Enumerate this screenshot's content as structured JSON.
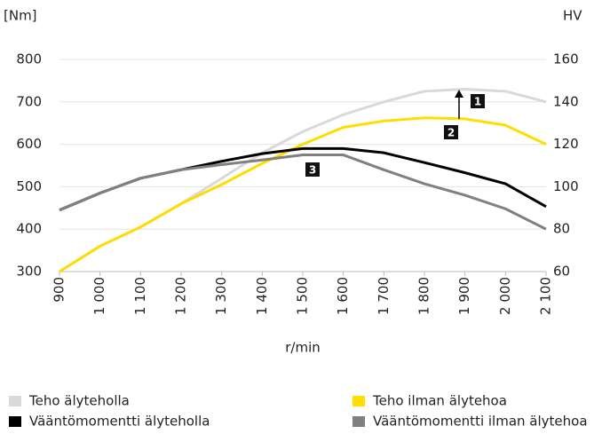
{
  "chart_data": {
    "type": "line",
    "y_label": "[Nm]",
    "y2_label": "HV",
    "x_label": "r/min",
    "x": [
      900,
      1000,
      1100,
      1200,
      1300,
      1400,
      1500,
      1600,
      1700,
      1800,
      1900,
      2000,
      2100
    ],
    "xlim": [
      900,
      2100
    ],
    "xticks": [
      900,
      {
        "value": 1000,
        "label": "1 000"
      },
      {
        "value": 1100,
        "label": "1 100"
      },
      {
        "value": 1200,
        "label": "1 200"
      },
      {
        "value": 1300,
        "label": "1 300"
      },
      {
        "value": 1400,
        "label": "1 400"
      },
      {
        "value": 1500,
        "label": "1 500"
      },
      {
        "value": 1600,
        "label": "1 600"
      },
      {
        "value": 1700,
        "label": "1 700"
      },
      {
        "value": 1800,
        "label": "1 800"
      },
      {
        "value": 1900,
        "label": "1 900"
      },
      {
        "value": 2000,
        "label": "2 000"
      },
      {
        "value": 2100,
        "label": "2 100"
      }
    ],
    "ylim": [
      300,
      800
    ],
    "yticks": [
      300,
      400,
      500,
      600,
      700,
      800
    ],
    "y2lim": [
      60,
      160
    ],
    "y2ticks": [
      60,
      80,
      100,
      120,
      140,
      160
    ],
    "grid": true,
    "legend_position": "bottom",
    "series": [
      {
        "name": "Teho älyteholla",
        "color": "#d9d9d9",
        "axis": "y2",
        "values": [
          60,
          72,
          81,
          92,
          104,
          116,
          126,
          134,
          140,
          145,
          146,
          145,
          140
        ]
      },
      {
        "name": "Teho ilman älytehoa",
        "color": "#ffdd00",
        "axis": "y2",
        "values": [
          60,
          72,
          81,
          92,
          101,
          111,
          120,
          128,
          131,
          132.5,
          132,
          129,
          120
        ]
      },
      {
        "name": "Vääntömomentti älyteholla",
        "color": "#000000",
        "values": [
          445,
          485,
          520,
          540,
          560,
          578,
          590,
          590,
          580,
          557,
          533,
          507,
          453
        ]
      },
      {
        "name": "Vääntömomentti ilman älytehoa",
        "color": "#808080",
        "values": [
          445,
          485,
          520,
          540,
          552,
          563,
          575,
          575,
          540,
          507,
          480,
          448,
          400
        ]
      }
    ],
    "annotations": [
      "1",
      "2",
      "3"
    ]
  }
}
